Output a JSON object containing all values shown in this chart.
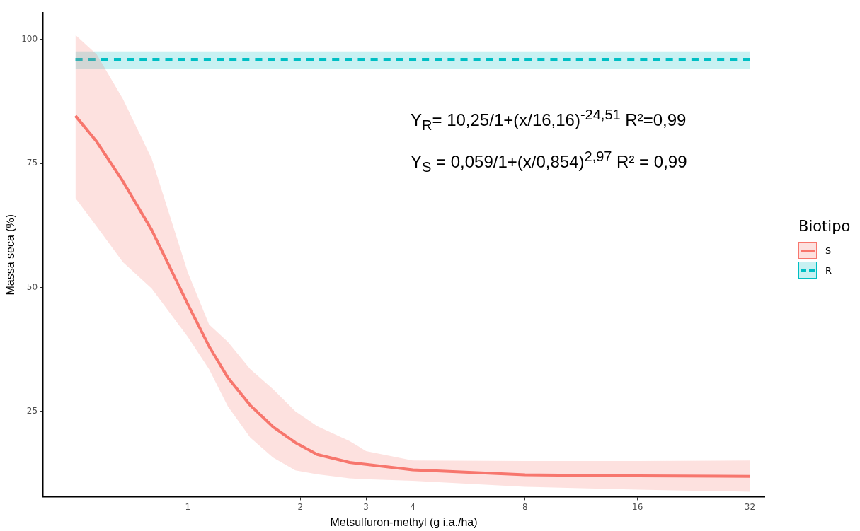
{
  "chart_data": {
    "type": "line",
    "xlabel": "Metsulfuron-methyl (g i.a./ha)",
    "ylabel": "Massa seca (%)",
    "legend_title": "Biotipo",
    "legend": "right",
    "grid": false,
    "marker": "none",
    "log": "x",
    "xlim": [
      0.41,
      35
    ],
    "xticks": [
      1,
      2,
      3,
      4,
      8,
      16,
      32
    ],
    "ylim": [
      7.8,
      105.4
    ],
    "yticks": [
      25,
      50,
      75,
      100
    ],
    "annotations": [
      "Y$_{R}$= 10,25/1+(x/16,16)$^{-24,51}$ R²=0,99",
      "Y$_{S}$ = 0,059/1+(x/0,854)$^{2,97}$ R² = 0,99"
    ],
    "series": [
      {
        "name": "S",
        "color": "#f8766d",
        "line_style": "solid",
        "x": [
          0.5,
          0.57,
          0.67,
          0.8,
          1,
          1.14,
          1.28,
          1.47,
          1.69,
          1.94,
          2.22,
          2.71,
          3,
          4,
          8,
          16,
          32
        ],
        "values": [
          84.6,
          79.4,
          71.4,
          61.6,
          46.6,
          38.1,
          31.8,
          26.2,
          21.9,
          18.7,
          16.3,
          14.7,
          14.3,
          13.2,
          12.2,
          12.0,
          11.9
        ],
        "upper": [
          100.9,
          97,
          88,
          76,
          53,
          42.5,
          39,
          33.5,
          29.5,
          25,
          22,
          19,
          17,
          15.1,
          15,
          15,
          15.1
        ],
        "lower": [
          68,
          62.3,
          55.1,
          49.8,
          40,
          33.5,
          26,
          19.7,
          15.7,
          13.1,
          12.3,
          11.5,
          11.3,
          11,
          9.8,
          9.2,
          8.8
        ]
      },
      {
        "name": "R",
        "color": "#00bfc4",
        "line_style": "dashed",
        "x": [
          0.5,
          32
        ],
        "values": [
          96,
          96
        ],
        "upper": [
          97.6,
          97.6
        ],
        "lower": [
          94.1,
          94.1
        ]
      }
    ]
  }
}
